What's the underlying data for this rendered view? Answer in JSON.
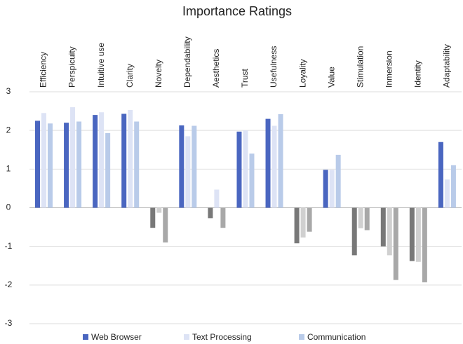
{
  "chart_data": {
    "type": "bar",
    "title": "Importance Ratings",
    "categories": [
      "Efficiency",
      "Perspicuity",
      "Intuitive use",
      "Clarity",
      "Novelty",
      "Dependability",
      "Aesthetics",
      "Trust",
      "Usefulness",
      "Loyality",
      "Value",
      "Stimulation",
      "Inmersion",
      "Identity",
      "Adaptability"
    ],
    "series": [
      {
        "name": "Web Browser",
        "color": "#4a66c0",
        "negative_color": "#787878",
        "values": [
          2.25,
          2.2,
          2.4,
          2.43,
          -0.52,
          2.13,
          -0.27,
          1.97,
          2.3,
          -0.92,
          0.98,
          -1.23,
          -1.0,
          -1.38,
          1.7
        ]
      },
      {
        "name": "Text Processing",
        "color": "#dde3f5",
        "negative_color": "#d0d0d0",
        "values": [
          2.45,
          2.6,
          2.47,
          2.53,
          -0.13,
          1.85,
          0.47,
          2.0,
          2.12,
          -0.77,
          0.98,
          -0.53,
          -1.23,
          -1.4,
          0.73
        ]
      },
      {
        "name": "Communication",
        "color": "#b9cbe9",
        "negative_color": "#a8a8a8",
        "values": [
          2.18,
          2.23,
          1.93,
          2.23,
          -0.9,
          2.12,
          -0.52,
          1.4,
          2.42,
          -0.62,
          1.37,
          -0.58,
          -1.87,
          -1.93,
          1.1
        ]
      }
    ],
    "ylim": [
      -3,
      3
    ],
    "yticks": [
      -3,
      -2,
      -1,
      0,
      1,
      2,
      3
    ],
    "grid": true,
    "legend": "bottom"
  }
}
